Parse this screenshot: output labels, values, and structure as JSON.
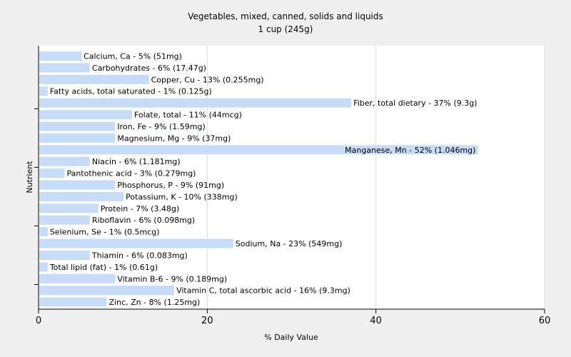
{
  "chart_data": {
    "type": "bar",
    "orientation": "horizontal",
    "title": "Vegetables, mixed, canned, solids and liquids",
    "subtitle": "1 cup (245g)",
    "xlabel": "% Daily Value",
    "ylabel": "Nutrient",
    "xlim": [
      0,
      60
    ],
    "xticks": [
      0,
      20,
      40,
      60
    ],
    "grid": true,
    "colors": {
      "bar": "#c6dcf7",
      "background": "#f0f0f0",
      "plot": "#ffffff",
      "grid": "#dcdcdc",
      "axis": "#000000"
    },
    "bars": [
      {
        "nutrient": "Calcium, Ca",
        "value": 5,
        "label": "Calcium, Ca - 5% (51mg)"
      },
      {
        "nutrient": "Carbohydrates",
        "value": 6,
        "label": "Carbohydrates - 6% (17.47g)"
      },
      {
        "nutrient": "Copper, Cu",
        "value": 13,
        "label": "Copper, Cu - 13% (0.255mg)"
      },
      {
        "nutrient": "Fatty acids, total saturated",
        "value": 1,
        "label": "Fatty acids, total saturated - 1% (0.125g)"
      },
      {
        "nutrient": "Fiber, total dietary",
        "value": 37,
        "label": "Fiber, total dietary - 37% (9.3g)"
      },
      {
        "nutrient": "Folate, total",
        "value": 11,
        "label": "Folate, total - 11% (44mcg)"
      },
      {
        "nutrient": "Iron, Fe",
        "value": 9,
        "label": "Iron, Fe - 9% (1.59mg)"
      },
      {
        "nutrient": "Magnesium, Mg",
        "value": 9,
        "label": "Magnesium, Mg - 9% (37mg)"
      },
      {
        "nutrient": "Manganese, Mn",
        "value": 52,
        "label": "Manganese, Mn - 52% (1.046mg)"
      },
      {
        "nutrient": "Niacin",
        "value": 6,
        "label": "Niacin - 6% (1.181mg)"
      },
      {
        "nutrient": "Pantothenic acid",
        "value": 3,
        "label": "Pantothenic acid - 3% (0.279mg)"
      },
      {
        "nutrient": "Phosphorus, P",
        "value": 9,
        "label": "Phosphorus, P - 9% (91mg)"
      },
      {
        "nutrient": "Potassium, K",
        "value": 10,
        "label": "Potassium, K - 10% (338mg)"
      },
      {
        "nutrient": "Protein",
        "value": 7,
        "label": "Protein - 7% (3.48g)"
      },
      {
        "nutrient": "Riboflavin",
        "value": 6,
        "label": "Riboflavin - 6% (0.098mg)"
      },
      {
        "nutrient": "Selenium, Se",
        "value": 1,
        "label": "Selenium, Se - 1% (0.5mcg)"
      },
      {
        "nutrient": "Sodium, Na",
        "value": 23,
        "label": "Sodium, Na - 23% (549mg)"
      },
      {
        "nutrient": "Thiamin",
        "value": 6,
        "label": "Thiamin - 6% (0.083mg)"
      },
      {
        "nutrient": "Total lipid (fat)",
        "value": 1,
        "label": "Total lipid (fat) - 1% (0.61g)"
      },
      {
        "nutrient": "Vitamin B-6",
        "value": 9,
        "label": "Vitamin B-6 - 9% (0.189mg)"
      },
      {
        "nutrient": "Vitamin C, total ascorbic acid",
        "value": 16,
        "label": "Vitamin C, total ascorbic acid - 16% (9.3mg)"
      },
      {
        "nutrient": "Zinc, Zn",
        "value": 8,
        "label": "Zinc, Zn - 8% (1.25mg)"
      }
    ]
  }
}
